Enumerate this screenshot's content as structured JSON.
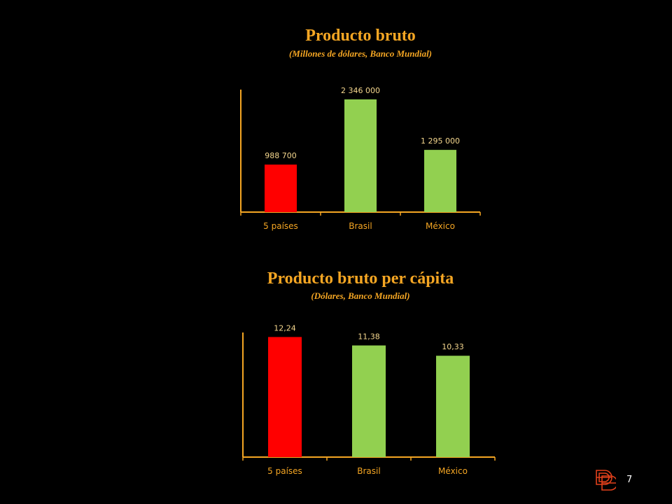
{
  "colors": {
    "background": "#000000",
    "title": "#f5a623",
    "axis": "#f5a623",
    "highlight_bar": "#ff0000",
    "other_bar": "#92d050",
    "label": "#f5d78e",
    "tick_label": "#f5a623"
  },
  "chart_data": [
    {
      "type": "bar",
      "title": "Producto bruto",
      "subtitle": "(Millones de dólares, Banco Mundial)",
      "categories": [
        "5 países",
        "Brasil",
        "México"
      ],
      "values": [
        988700,
        2346000,
        1295000
      ],
      "value_labels": [
        "988 700",
        "2 346 000",
        "1 295 000"
      ],
      "bar_colors": [
        "#ff0000",
        "#92d050",
        "#92d050"
      ],
      "ylim": [
        0,
        2550000
      ],
      "grid": false,
      "legend": "none"
    },
    {
      "type": "bar",
      "title": "Producto bruto per cápita",
      "subtitle": "(Dólares, Banco Mundial)",
      "categories": [
        "5 países",
        "Brasil",
        "México"
      ],
      "values": [
        12.24,
        11.38,
        10.33
      ],
      "value_labels": [
        "12,24",
        "11,38",
        "10,33"
      ],
      "bar_colors": [
        "#ff0000",
        "#92d050",
        "#92d050"
      ],
      "ylim": [
        0,
        12.7
      ],
      "grid": false,
      "legend": "none"
    }
  ],
  "footer": {
    "page_number": "7",
    "logo_icon": "stacked-letters-logo-icon"
  }
}
